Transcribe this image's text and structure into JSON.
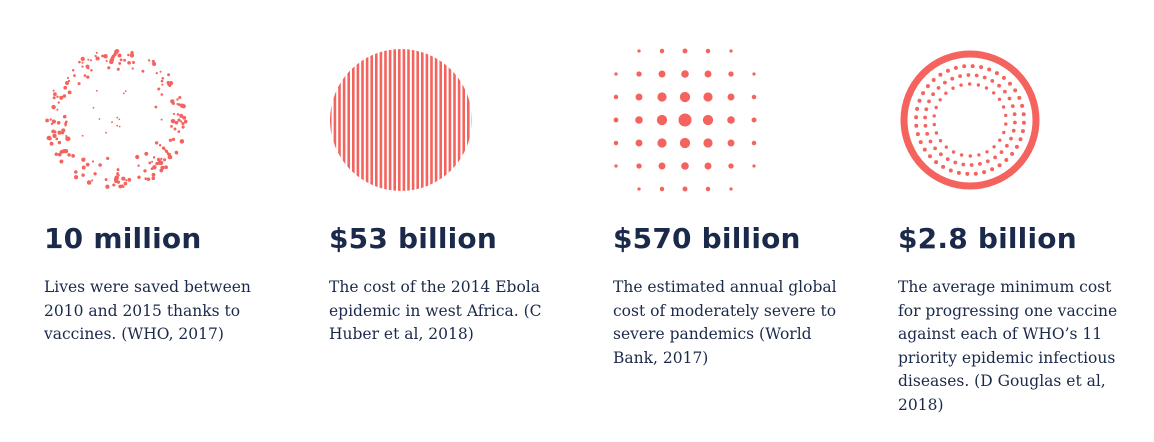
{
  "accent_color": "#f4635e",
  "text_color": "#1b2a4a",
  "stats": [
    {
      "figure": "10 million",
      "description": "Lives were saved between 2010 and 2015 thanks to vaccines. (WHO, 2017)",
      "icon": "scattered-dots-circle-icon"
    },
    {
      "figure": "$53 billion",
      "description": "The cost of the 2014 Ebola epidemic in west Africa. (C Huber et al, 2018)",
      "icon": "striped-circle-icon"
    },
    {
      "figure": "$570 billion",
      "description": "The estimated annual global cost of moderately severe to severe pandemics (World Bank, 2017)",
      "icon": "dot-grid-icon"
    },
    {
      "figure": "$2.8 billion",
      "description": "The average minimum cost for progressing one vaccine against each of WHO’s 11 priority epidemic infectious diseases. (D Gouglas et al, 2018)",
      "icon": "ring-of-dots-icon"
    }
  ]
}
